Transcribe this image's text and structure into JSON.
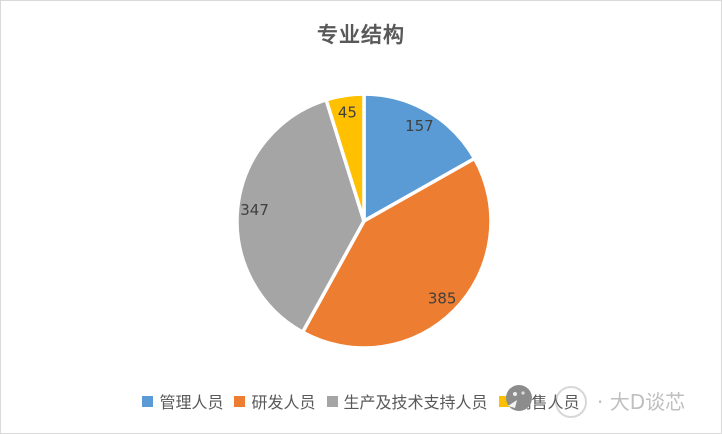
{
  "frame": {
    "background": "#FFFFFF",
    "border_color": "#D9D9D9"
  },
  "chart_data": {
    "type": "pie",
    "title": "专业结构",
    "categories": [
      "管理人员",
      "研发人员",
      "生产及技术支持人员",
      "销售人员"
    ],
    "values": [
      157,
      385,
      347,
      45
    ],
    "total": 934,
    "colors": [
      "#5B9BD5",
      "#ED7D31",
      "#A5A5A5",
      "#FFC000"
    ],
    "data_labels": [
      "157",
      "385",
      "347",
      "45"
    ],
    "data_label_color": "#404040",
    "slice_border_color": "#FFFFFF",
    "start_angle_deg": 0,
    "direction": "clockwise",
    "legend_position": "bottom",
    "title_color": "#595959"
  },
  "watermark": {
    "text": "· 大D谈芯",
    "logo": "gray-avatar-circle",
    "text_color": "#BFBFBF"
  }
}
